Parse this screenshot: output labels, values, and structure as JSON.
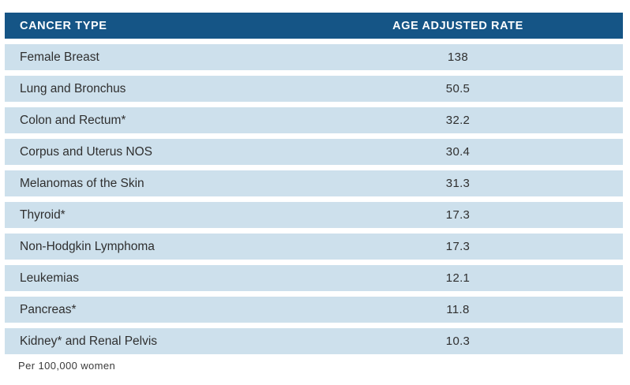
{
  "table": {
    "columns": {
      "type_label": "CANCER TYPE",
      "rate_label": "AGE ADJUSTED RATE"
    },
    "rows": [
      {
        "type": "Female Breast",
        "rate": "138"
      },
      {
        "type": "Lung and Bronchus",
        "rate": "50.5"
      },
      {
        "type": "Colon and Rectum*",
        "rate": "32.2"
      },
      {
        "type": "Corpus and Uterus NOS",
        "rate": "30.4"
      },
      {
        "type": "Melanomas of the Skin",
        "rate": "31.3"
      },
      {
        "type": "Thyroid*",
        "rate": "17.3"
      },
      {
        "type": "Non-Hodgkin Lymphoma",
        "rate": "17.3"
      },
      {
        "type": "Leukemias",
        "rate": "12.1"
      },
      {
        "type": "Pancreas*",
        "rate": "11.8"
      },
      {
        "type": "Kidney* and Renal Pelvis",
        "rate": "10.3"
      }
    ],
    "footnote": "Per 100,000 women"
  },
  "colors": {
    "header_bg": "#155586",
    "header_text": "#ffffff",
    "row_bg": "#cde0ec",
    "row_text": "#2f2f2f"
  },
  "chart_data": {
    "type": "table",
    "title": "",
    "columns": [
      "CANCER TYPE",
      "AGE ADJUSTED RATE"
    ],
    "categories": [
      "Female Breast",
      "Lung and Bronchus",
      "Colon and Rectum*",
      "Corpus and Uterus NOS",
      "Melanomas of the Skin",
      "Thyroid*",
      "Non-Hodgkin Lymphoma",
      "Leukemias",
      "Pancreas*",
      "Kidney* and Renal Pelvis"
    ],
    "values": [
      138,
      50.5,
      32.2,
      30.4,
      31.3,
      17.3,
      17.3,
      12.1,
      11.8,
      10.3
    ],
    "footnote": "Per 100,000 women",
    "layout": "striped rows, rate column centered, no gridlines"
  }
}
